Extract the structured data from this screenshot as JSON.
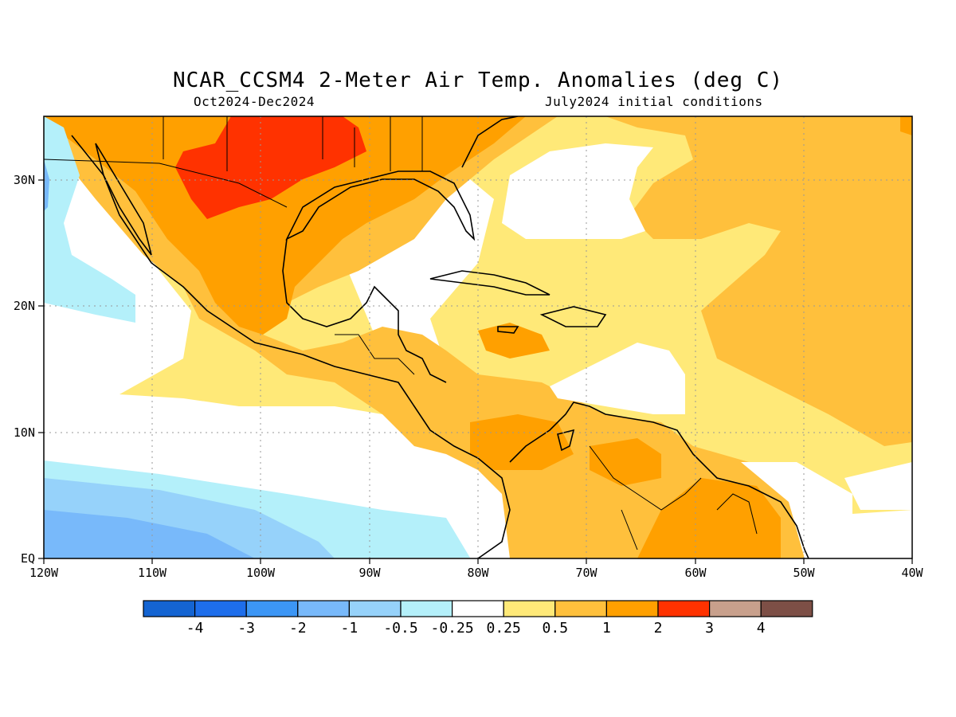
{
  "title": "NCAR_CCSM4 2-Meter Air Temp. Anomalies (deg C)",
  "subtitle_left": "Oct2024-Dec2024",
  "subtitle_right": "July2024 initial conditions",
  "x_ticks": [
    "120W",
    "110W",
    "100W",
    "90W",
    "80W",
    "70W",
    "60W",
    "50W",
    "40W"
  ],
  "y_ticks": [
    "30N",
    "20N",
    "10N",
    "EQ"
  ],
  "colorbar": {
    "colors": [
      "#1464d2",
      "#1e6eeb",
      "#3c96f5",
      "#78b9fa",
      "#96d2fa",
      "#b4f0fa",
      "#ffffff",
      "#ffe978",
      "#ffc03c",
      "#ffa000",
      "#ff3200",
      "#c8a08c",
      "#7d4f46"
    ],
    "labels": [
      "-4",
      "-3",
      "-2",
      "-1",
      "-0.5",
      "-0.25",
      "0.25",
      "0.5",
      "1",
      "2",
      "3",
      "4"
    ]
  }
}
